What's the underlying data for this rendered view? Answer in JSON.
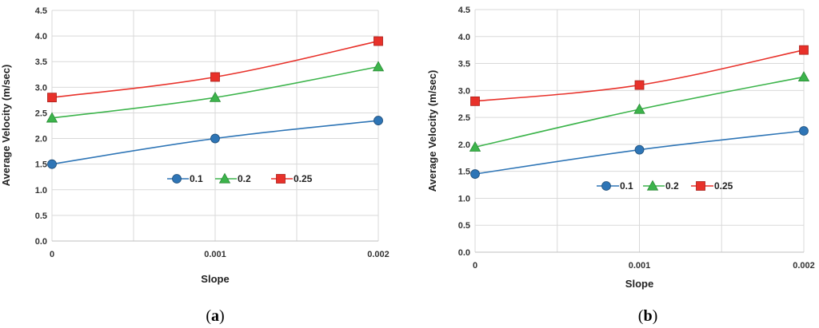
{
  "chart_data": [
    {
      "type": "line",
      "panel_label": "(a)",
      "panel_label_parts": [
        "(",
        "a",
        ")"
      ],
      "x": [
        0,
        0.001,
        0.002
      ],
      "x_tick_labels": [
        "0",
        "0.001",
        "0.002"
      ],
      "xlabel": "Slope",
      "ylabel": "Average Velocity (m/sec)",
      "ylim": [
        0,
        4.5
      ],
      "y_tick_labels": [
        "0.0",
        "0.5",
        "1.0",
        "1.5",
        "2.0",
        "2.5",
        "3.0",
        "3.5",
        "4.0",
        "4.5"
      ],
      "grid": true,
      "legend_position": "center",
      "series": [
        {
          "name": "0.1",
          "values": [
            1.5,
            2.0,
            2.35
          ],
          "color": "#2e75b6",
          "marker": "circle"
        },
        {
          "name": "0.2",
          "values": [
            2.4,
            2.8,
            3.4
          ],
          "color": "#3cb44b",
          "marker": "triangle"
        },
        {
          "name": "0.25",
          "values": [
            2.8,
            3.2,
            3.9
          ],
          "color": "#e8312a",
          "marker": "square"
        }
      ]
    },
    {
      "type": "line",
      "panel_label": "(b)",
      "panel_label_parts": [
        "(",
        "b",
        ")"
      ],
      "x": [
        0,
        0.001,
        0.002
      ],
      "x_tick_labels": [
        "0",
        "0.001",
        "0.002"
      ],
      "xlabel": "Slope",
      "ylabel": "Average Velocity (m/sec)",
      "ylim": [
        0,
        4.5
      ],
      "y_tick_labels": [
        "0.0",
        "0.5",
        "1.0",
        "1.5",
        "2.0",
        "2.5",
        "3.0",
        "3.5",
        "4.0",
        "4.5"
      ],
      "grid": true,
      "legend_position": "center",
      "series": [
        {
          "name": "0.1",
          "values": [
            1.45,
            1.9,
            2.25
          ],
          "color": "#2e75b6",
          "marker": "circle"
        },
        {
          "name": "0.2",
          "values": [
            1.95,
            2.65,
            3.25
          ],
          "color": "#3cb44b",
          "marker": "triangle"
        },
        {
          "name": "0.25",
          "values": [
            2.8,
            3.1,
            3.75
          ],
          "color": "#e8312a",
          "marker": "square"
        }
      ]
    }
  ]
}
